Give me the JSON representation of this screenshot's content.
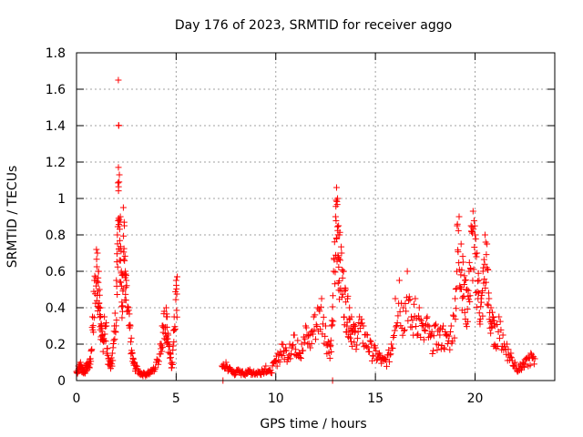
{
  "chart_data": {
    "type": "scatter",
    "title": "Day 176 of 2023, SRMTID for receiver aggo",
    "xlabel": "GPS time / hours",
    "ylabel": "SRMTID / TECUs",
    "xlim": [
      0,
      24
    ],
    "ylim": [
      0,
      1.8
    ],
    "xticks": [
      0,
      5,
      10,
      15,
      20
    ],
    "xtick_labels": [
      "0",
      "5",
      "10",
      "15",
      "20"
    ],
    "yticks": [
      0,
      0.2,
      0.4,
      0.6,
      0.8,
      1.0,
      1.2,
      1.4,
      1.6,
      1.8
    ],
    "ytick_labels": [
      "0",
      "0.2",
      "0.4",
      "0.6",
      "0.8",
      "1",
      "1.2",
      "1.4",
      "1.6",
      "1.8"
    ],
    "grid": true,
    "marker": "+",
    "series": [
      {
        "name": "SRMTID",
        "color": "#ff0000",
        "x": [
          0.0,
          0.1,
          0.2,
          0.3,
          0.4,
          0.5,
          0.6,
          0.7,
          0.8,
          0.9,
          1.0,
          1.05,
          1.1,
          1.15,
          1.2,
          1.25,
          1.3,
          1.4,
          1.5,
          1.6,
          1.7,
          1.8,
          1.9,
          2.0,
          2.05,
          2.1,
          2.12,
          2.15,
          2.2,
          2.25,
          2.3,
          2.35,
          2.4,
          2.45,
          2.5,
          2.6,
          2.7,
          2.8,
          2.9,
          3.0,
          3.2,
          3.4,
          3.6,
          3.8,
          4.0,
          4.2,
          4.3,
          4.4,
          4.5,
          4.55,
          4.6,
          4.7,
          4.8,
          4.9,
          5.0,
          5.05,
          7.3,
          7.5,
          7.7,
          7.9,
          8.1,
          8.3,
          8.5,
          8.7,
          8.9,
          9.1,
          9.3,
          9.5,
          9.7,
          9.9,
          10.1,
          10.3,
          10.5,
          10.7,
          10.9,
          11.1,
          11.3,
          11.5,
          11.7,
          11.9,
          12.1,
          12.3,
          12.5,
          12.7,
          12.8,
          12.9,
          13.0,
          13.05,
          13.1,
          13.15,
          13.2,
          13.3,
          13.4,
          13.5,
          13.6,
          13.7,
          13.8,
          13.9,
          14.0,
          14.2,
          14.4,
          14.6,
          14.8,
          15.0,
          15.2,
          15.4,
          15.6,
          15.8,
          16.0,
          16.2,
          16.4,
          16.6,
          16.8,
          17.0,
          17.2,
          17.4,
          17.6,
          17.8,
          18.0,
          18.2,
          18.4,
          18.6,
          18.8,
          19.0,
          19.1,
          19.2,
          19.3,
          19.4,
          19.5,
          19.6,
          19.7,
          19.8,
          19.9,
          20.0,
          20.1,
          20.2,
          20.3,
          20.4,
          20.5,
          20.6,
          20.7,
          20.8,
          20.9,
          21.0,
          21.2,
          21.4,
          21.6,
          21.8,
          22.0,
          22.2,
          22.4,
          22.6,
          22.8,
          23.0
        ],
        "y": [
          0.05,
          0.08,
          0.1,
          0.07,
          0.06,
          0.09,
          0.1,
          0.12,
          0.35,
          0.55,
          0.72,
          0.7,
          0.6,
          0.5,
          0.4,
          0.3,
          0.25,
          0.35,
          0.3,
          0.12,
          0.1,
          0.15,
          0.3,
          0.55,
          0.8,
          1.65,
          1.4,
          1.13,
          0.9,
          0.6,
          0.58,
          0.95,
          0.85,
          0.6,
          0.55,
          0.4,
          0.3,
          0.15,
          0.1,
          0.08,
          0.05,
          0.04,
          0.05,
          0.06,
          0.1,
          0.2,
          0.3,
          0.38,
          0.4,
          0.35,
          0.25,
          0.15,
          0.1,
          0.35,
          0.55,
          0.57,
          0.08,
          0.1,
          0.07,
          0.05,
          0.06,
          0.05,
          0.05,
          0.06,
          0.05,
          0.05,
          0.06,
          0.08,
          0.05,
          0.1,
          0.15,
          0.2,
          0.18,
          0.2,
          0.25,
          0.22,
          0.2,
          0.3,
          0.25,
          0.35,
          0.4,
          0.45,
          0.3,
          0.2,
          0.3,
          0.6,
          0.9,
          1.06,
          1.0,
          0.85,
          0.8,
          0.7,
          0.6,
          0.5,
          0.45,
          0.4,
          0.35,
          0.3,
          0.3,
          0.35,
          0.3,
          0.25,
          0.2,
          0.18,
          0.15,
          0.12,
          0.14,
          0.2,
          0.45,
          0.55,
          0.4,
          0.6,
          0.35,
          0.45,
          0.4,
          0.3,
          0.35,
          0.25,
          0.3,
          0.28,
          0.3,
          0.25,
          0.3,
          0.45,
          0.85,
          0.9,
          0.75,
          0.65,
          0.55,
          0.5,
          0.6,
          0.85,
          0.93,
          0.8,
          0.7,
          0.55,
          0.45,
          0.6,
          0.8,
          0.75,
          0.45,
          0.4,
          0.35,
          0.3,
          0.35,
          0.25,
          0.2,
          0.15,
          0.1,
          0.08,
          0.1,
          0.12,
          0.15,
          0.12
        ],
        "isolated_points": {
          "x": [
            7.35,
            12.85
          ],
          "y": [
            0.0,
            0.0
          ]
        }
      }
    ]
  }
}
